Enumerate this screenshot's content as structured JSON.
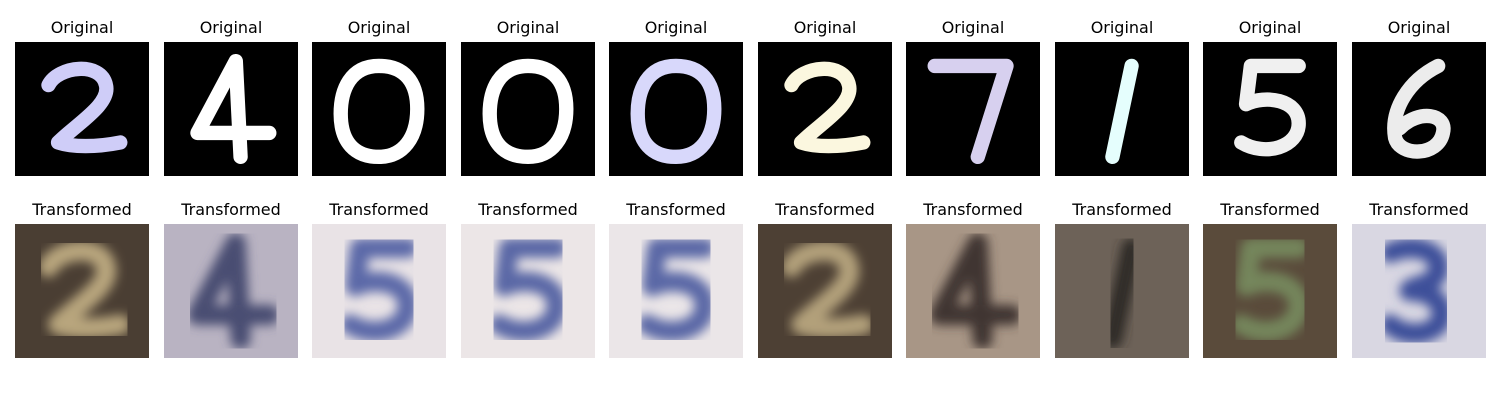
{
  "rows": [
    {
      "name": "original",
      "title": "Original",
      "panels": [
        {
          "digit": "2",
          "background": "#000000",
          "ink": "#cfcdf8"
        },
        {
          "digit": "4",
          "background": "#000000",
          "ink": "#ffffff"
        },
        {
          "digit": "0",
          "background": "#000000",
          "ink": "#ffffff"
        },
        {
          "digit": "0",
          "background": "#000000",
          "ink": "#ffffff"
        },
        {
          "digit": "0",
          "background": "#000000",
          "ink": "#d8d8fb"
        },
        {
          "digit": "2",
          "background": "#000000",
          "ink": "#fbf7df"
        },
        {
          "digit": "7",
          "background": "#000000",
          "ink": "#d7d0ef"
        },
        {
          "digit": "1",
          "background": "#000000",
          "ink": "#e5fefd"
        },
        {
          "digit": "5",
          "background": "#000000",
          "ink": "#f0f0f0"
        },
        {
          "digit": "6",
          "background": "#000000",
          "ink": "#ececec"
        }
      ]
    },
    {
      "name": "transformed",
      "title": "Transformed",
      "panels": [
        {
          "digit": "2",
          "background": "#4a3e33",
          "ink": "#b8a57d"
        },
        {
          "digit": "4",
          "background": "#b9b3c2",
          "ink": "#4a4d72"
        },
        {
          "digit": "5",
          "background": "#e9e3e6",
          "ink": "#5b69a8"
        },
        {
          "digit": "5",
          "background": "#ece6e7",
          "ink": "#5a68a6"
        },
        {
          "digit": "5",
          "background": "#ebe6e8",
          "ink": "#5a68a6"
        },
        {
          "digit": "2",
          "background": "#4d4034",
          "ink": "#b2a07a"
        },
        {
          "digit": "4",
          "background": "#a89686",
          "ink": "#3f3531"
        },
        {
          "digit": "1",
          "background": "#6d6258",
          "ink": "#2d2927"
        },
        {
          "digit": "5",
          "background": "#5a4b3b",
          "ink": "#75865b"
        },
        {
          "digit": "3",
          "background": "#d9d7e2",
          "ink": "#3d4f9a"
        }
      ]
    }
  ]
}
